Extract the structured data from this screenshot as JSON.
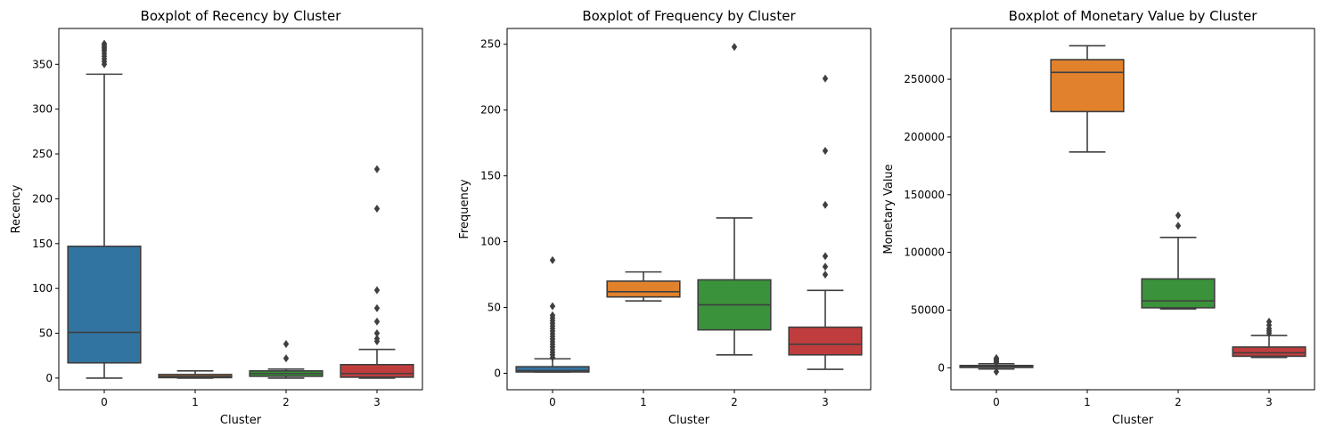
{
  "chart_data": [
    {
      "type": "box",
      "title": "Boxplot of Recency by Cluster",
      "xlabel": "Cluster",
      "ylabel": "Recency",
      "categories": [
        "0",
        "1",
        "2",
        "3"
      ],
      "ylim": [
        -13,
        390
      ],
      "yticks": [
        0,
        50,
        100,
        150,
        200,
        250,
        300,
        350
      ],
      "ytick_labels": [
        "0",
        "50",
        "100",
        "150",
        "200",
        "250",
        "300",
        "350"
      ],
      "grid": false,
      "series": [
        {
          "color": "#3274a1",
          "whisker_low": 0,
          "q1": 17,
          "median": 51,
          "q3": 147,
          "whisker_high": 339,
          "outliers": [
            350,
            353,
            356,
            359,
            362,
            365,
            367,
            369,
            371,
            373
          ]
        },
        {
          "color": "#e1812c",
          "whisker_low": 0,
          "q1": 0.5,
          "median": 2,
          "q3": 4,
          "whisker_high": 8,
          "outliers": []
        },
        {
          "color": "#3a923a",
          "whisker_low": 0,
          "q1": 2,
          "median": 5,
          "q3": 8,
          "whisker_high": 10,
          "outliers": [
            22,
            38
          ]
        },
        {
          "color": "#c03d3e",
          "whisker_low": 0,
          "q1": 1,
          "median": 5,
          "q3": 15,
          "whisker_high": 32,
          "outliers": [
            41,
            44,
            50,
            63,
            78,
            98,
            189,
            233
          ]
        }
      ]
    },
    {
      "type": "box",
      "title": "Boxplot of Frequency by Cluster",
      "xlabel": "Cluster",
      "ylabel": "Frequency",
      "categories": [
        "0",
        "1",
        "2",
        "3"
      ],
      "ylim": [
        -12.5,
        262
      ],
      "yticks": [
        0,
        50,
        100,
        150,
        200,
        250
      ],
      "ytick_labels": [
        "0",
        "50",
        "100",
        "150",
        "200",
        "250"
      ],
      "grid": false,
      "series": [
        {
          "color": "#3274a1",
          "whisker_low": 1,
          "q1": 1,
          "median": 2,
          "q3": 5,
          "whisker_high": 11,
          "outliers": [
            12,
            14,
            16,
            18,
            20,
            22,
            24,
            26,
            28,
            30,
            32,
            34,
            36,
            38,
            40,
            42,
            44,
            51,
            86
          ]
        },
        {
          "color": "#e1812c",
          "whisker_low": 55,
          "q1": 58,
          "median": 62,
          "q3": 70,
          "whisker_high": 77,
          "outliers": []
        },
        {
          "color": "#3a923a",
          "whisker_low": 14,
          "q1": 33,
          "median": 52,
          "q3": 71,
          "whisker_high": 118,
          "outliers": [
            248
          ]
        },
        {
          "color": "#c03d3e",
          "whisker_low": 3,
          "q1": 14,
          "median": 22,
          "q3": 35,
          "whisker_high": 63,
          "outliers": [
            75,
            81,
            89,
            128,
            169,
            224
          ]
        }
      ]
    },
    {
      "type": "box",
      "title": "Boxplot of Monetary Value by Cluster",
      "xlabel": "Cluster",
      "ylabel": "Monetary Value",
      "categories": [
        "0",
        "1",
        "2",
        "3"
      ],
      "ylim": [
        -19000,
        294000
      ],
      "yticks": [
        0,
        50000,
        100000,
        150000,
        200000,
        250000
      ],
      "ytick_labels": [
        "0",
        "50000",
        "100000",
        "150000",
        "200000",
        "250000"
      ],
      "grid": false,
      "series": [
        {
          "color": "#3274a1",
          "whisker_low": -1000,
          "q1": 300,
          "median": 1000,
          "q3": 2000,
          "whisker_high": 3500,
          "outliers": [
            -3500,
            4500,
            5500,
            6500,
            7500,
            8500
          ]
        },
        {
          "color": "#e1812c",
          "whisker_low": 187000,
          "q1": 222000,
          "median": 256000,
          "q3": 267000,
          "whisker_high": 279000,
          "outliers": []
        },
        {
          "color": "#3a923a",
          "whisker_low": 51000,
          "q1": 52000,
          "median": 58000,
          "q3": 77000,
          "whisker_high": 113000,
          "outliers": [
            123000,
            132000
          ]
        },
        {
          "color": "#c03d3e",
          "whisker_low": 9000,
          "q1": 10000,
          "median": 13000,
          "q3": 18000,
          "whisker_high": 28000,
          "outliers": [
            30000,
            32000,
            34000,
            37000,
            40000
          ]
        }
      ]
    }
  ]
}
